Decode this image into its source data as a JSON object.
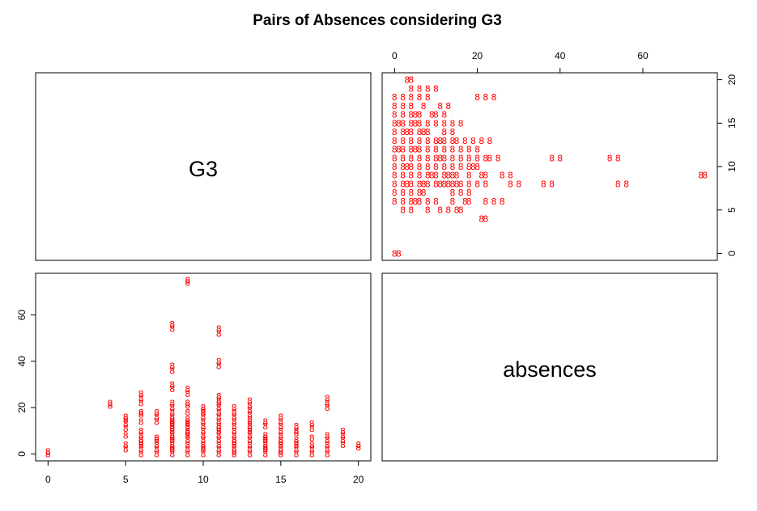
{
  "title": "Pairs of Absences considering G3",
  "variables": [
    "G3",
    "absences"
  ],
  "point_color": "#ff0000",
  "point_symbol": "8",
  "chart_data": {
    "type": "scatter",
    "kind": "pairs-matrix",
    "title": "Pairs of Absences considering G3",
    "variables": [
      "G3",
      "absences"
    ],
    "xlim_G3": [
      0,
      20
    ],
    "xticks_G3": [
      0,
      5,
      10,
      15,
      20
    ],
    "xlim_absences": [
      0,
      75
    ],
    "xticks_absences": [
      0,
      20,
      40,
      60
    ],
    "ylim_G3": [
      0,
      20
    ],
    "yticks_G3": [
      0,
      5,
      10,
      15,
      20
    ],
    "ylim_absences": [
      0,
      75
    ],
    "yticks_absences": [
      0,
      20,
      40,
      60
    ],
    "grid": false,
    "legend": "none",
    "points": [
      [
        0,
        0
      ],
      [
        0,
        1
      ],
      [
        4,
        21
      ],
      [
        4,
        22
      ],
      [
        5,
        2
      ],
      [
        5,
        4
      ],
      [
        5,
        8
      ],
      [
        5,
        11
      ],
      [
        5,
        13
      ],
      [
        5,
        15
      ],
      [
        5,
        16
      ],
      [
        6,
        0
      ],
      [
        6,
        2
      ],
      [
        6,
        4
      ],
      [
        6,
        5
      ],
      [
        6,
        6
      ],
      [
        6,
        8
      ],
      [
        6,
        10
      ],
      [
        6,
        14
      ],
      [
        6,
        17
      ],
      [
        6,
        18
      ],
      [
        6,
        22
      ],
      [
        6,
        24
      ],
      [
        6,
        26
      ],
      [
        7,
        0
      ],
      [
        7,
        2
      ],
      [
        7,
        4
      ],
      [
        7,
        6
      ],
      [
        7,
        7
      ],
      [
        7,
        14
      ],
      [
        7,
        16
      ],
      [
        7,
        18
      ],
      [
        8,
        0
      ],
      [
        8,
        2
      ],
      [
        8,
        3
      ],
      [
        8,
        4
      ],
      [
        8,
        6
      ],
      [
        8,
        7
      ],
      [
        8,
        8
      ],
      [
        8,
        10
      ],
      [
        8,
        11
      ],
      [
        8,
        12
      ],
      [
        8,
        13
      ],
      [
        8,
        14
      ],
      [
        8,
        15
      ],
      [
        8,
        16
      ],
      [
        8,
        18
      ],
      [
        8,
        20
      ],
      [
        8,
        22
      ],
      [
        8,
        28
      ],
      [
        8,
        30
      ],
      [
        8,
        36
      ],
      [
        8,
        38
      ],
      [
        8,
        54
      ],
      [
        8,
        56
      ],
      [
        9,
        0
      ],
      [
        9,
        2
      ],
      [
        9,
        4
      ],
      [
        9,
        6
      ],
      [
        9,
        8
      ],
      [
        9,
        9
      ],
      [
        9,
        10
      ],
      [
        9,
        12
      ],
      [
        9,
        13
      ],
      [
        9,
        14
      ],
      [
        9,
        15
      ],
      [
        9,
        18
      ],
      [
        9,
        21
      ],
      [
        9,
        22
      ],
      [
        9,
        26
      ],
      [
        9,
        28
      ],
      [
        9,
        74
      ],
      [
        9,
        75
      ],
      [
        10,
        0
      ],
      [
        10,
        2
      ],
      [
        10,
        3
      ],
      [
        10,
        4
      ],
      [
        10,
        6
      ],
      [
        10,
        8
      ],
      [
        10,
        10
      ],
      [
        10,
        12
      ],
      [
        10,
        14
      ],
      [
        10,
        16
      ],
      [
        10,
        18
      ],
      [
        10,
        19
      ],
      [
        10,
        20
      ],
      [
        11,
        0
      ],
      [
        11,
        2
      ],
      [
        11,
        4
      ],
      [
        11,
        6
      ],
      [
        11,
        8
      ],
      [
        11,
        10
      ],
      [
        11,
        11
      ],
      [
        11,
        12
      ],
      [
        11,
        14
      ],
      [
        11,
        16
      ],
      [
        11,
        18
      ],
      [
        11,
        20
      ],
      [
        11,
        22
      ],
      [
        11,
        23
      ],
      [
        11,
        25
      ],
      [
        11,
        38
      ],
      [
        11,
        40
      ],
      [
        11,
        52
      ],
      [
        11,
        54
      ],
      [
        12,
        0
      ],
      [
        12,
        1
      ],
      [
        12,
        2
      ],
      [
        12,
        4
      ],
      [
        12,
        5
      ],
      [
        12,
        6
      ],
      [
        12,
        8
      ],
      [
        12,
        10
      ],
      [
        12,
        12
      ],
      [
        12,
        14
      ],
      [
        12,
        16
      ],
      [
        12,
        18
      ],
      [
        12,
        20
      ],
      [
        13,
        0
      ],
      [
        13,
        2
      ],
      [
        13,
        4
      ],
      [
        13,
        6
      ],
      [
        13,
        8
      ],
      [
        13,
        10
      ],
      [
        13,
        11
      ],
      [
        13,
        12
      ],
      [
        13,
        14
      ],
      [
        13,
        15
      ],
      [
        13,
        17
      ],
      [
        13,
        19
      ],
      [
        13,
        21
      ],
      [
        13,
        23
      ],
      [
        14,
        0
      ],
      [
        14,
        2
      ],
      [
        14,
        3
      ],
      [
        14,
        4
      ],
      [
        14,
        6
      ],
      [
        14,
        7
      ],
      [
        14,
        8
      ],
      [
        14,
        12
      ],
      [
        14,
        14
      ],
      [
        15,
        0
      ],
      [
        15,
        1
      ],
      [
        15,
        2
      ],
      [
        15,
        4
      ],
      [
        15,
        5
      ],
      [
        15,
        6
      ],
      [
        15,
        8
      ],
      [
        15,
        10
      ],
      [
        15,
        12
      ],
      [
        15,
        14
      ],
      [
        15,
        16
      ],
      [
        16,
        0
      ],
      [
        16,
        2
      ],
      [
        16,
        4
      ],
      [
        16,
        5
      ],
      [
        16,
        6
      ],
      [
        16,
        9
      ],
      [
        16,
        10
      ],
      [
        16,
        12
      ],
      [
        17,
        0
      ],
      [
        17,
        2
      ],
      [
        17,
        4
      ],
      [
        17,
        7
      ],
      [
        17,
        11
      ],
      [
        17,
        13
      ],
      [
        18,
        0
      ],
      [
        18,
        2
      ],
      [
        18,
        4
      ],
      [
        18,
        6
      ],
      [
        18,
        8
      ],
      [
        18,
        20
      ],
      [
        18,
        22
      ],
      [
        18,
        24
      ],
      [
        19,
        4
      ],
      [
        19,
        6
      ],
      [
        19,
        8
      ],
      [
        19,
        10
      ],
      [
        20,
        3
      ],
      [
        20,
        4
      ]
    ]
  }
}
